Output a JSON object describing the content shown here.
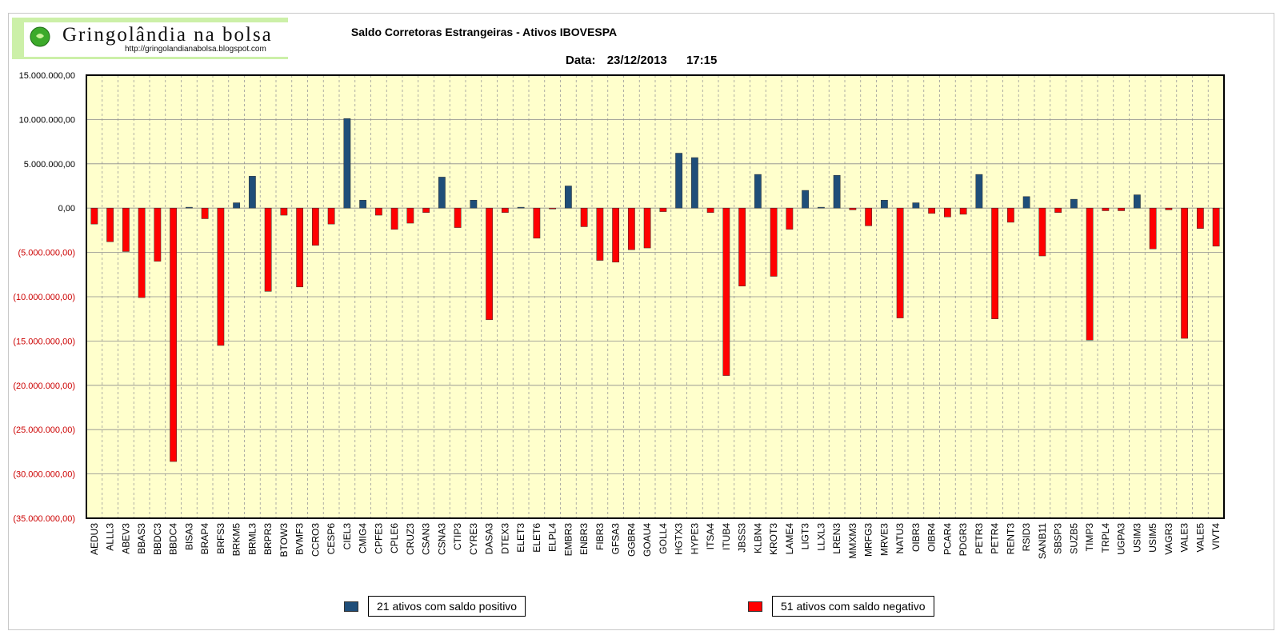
{
  "header": {
    "logo_text": "Gringolândia na bolsa",
    "logo_url": "http://gringolandianabolsa.blogspot.com",
    "title": "Saldo Corretoras Estrangeiras - Ativos IBOVESPA",
    "date_label": "Data:",
    "date_value": "23/12/2013",
    "time_value": "17:15"
  },
  "legend": {
    "positive": "21 ativos com saldo positivo",
    "negative": "51 ativos com saldo negativo"
  },
  "colors": {
    "plot_bg": "#ffffcc",
    "positive": "#1f4e79",
    "negative": "#ff0000",
    "logo_bg": "#ccf0a8"
  },
  "chart_data": {
    "type": "bar",
    "title": "Saldo Corretoras Estrangeiras - Ativos IBOVESPA",
    "xlabel": "",
    "ylabel": "",
    "ylim": [
      -35000000,
      15000000
    ],
    "yticks": [
      15000000,
      10000000,
      5000000,
      0,
      -5000000,
      -10000000,
      -15000000,
      -20000000,
      -25000000,
      -30000000,
      -35000000
    ],
    "ytick_labels": [
      "15.000.000,00",
      "10.000.000,00",
      "5.000.000,00",
      "0,00",
      "(5.000.000,00)",
      "(10.000.000,00)",
      "(15.000.000,00)",
      "(20.000.000,00)",
      "(25.000.000,00)",
      "(30.000.000,00)",
      "(35.000.000,00)"
    ],
    "grid": true,
    "categories": [
      "AEDU3",
      "ALLL3",
      "ABEV3",
      "BBAS3",
      "BBDC3",
      "BBDC4",
      "BISA3",
      "BRAP4",
      "BRFS3",
      "BRKM5",
      "BRML3",
      "BRPR3",
      "BTOW3",
      "BVMF3",
      "CCRO3",
      "CESP6",
      "CIEL3",
      "CMIG4",
      "CPFE3",
      "CPLE6",
      "CRUZ3",
      "CSAN3",
      "CSNA3",
      "CTIP3",
      "CYRE3",
      "DASA3",
      "DTEX3",
      "ELET3",
      "ELET6",
      "ELPL4",
      "EMBR3",
      "ENBR3",
      "FIBR3",
      "GFSA3",
      "GGBR4",
      "GOAU4",
      "GOLL4",
      "HGTX3",
      "HYPE3",
      "ITSA4",
      "ITUB4",
      "JBSS3",
      "KLBN4",
      "KROT3",
      "LAME4",
      "LIGT3",
      "LLXL3",
      "LREN3",
      "MMXM3",
      "MRFG3",
      "MRVE3",
      "NATU3",
      "OIBR3",
      "OIBR4",
      "PCAR4",
      "PDGR3",
      "PETR3",
      "PETR4",
      "RENT3",
      "RSID3",
      "SANB11",
      "SBSP3",
      "SUZB5",
      "TIMP3",
      "TRPL4",
      "UGPA3",
      "USIM3",
      "USIM5",
      "VAGR3",
      "VALE3",
      "VALE5",
      "VIVT4"
    ],
    "values": [
      -1800000,
      -3800000,
      -4900000,
      -10100000,
      -6000000,
      -28600000,
      100000,
      -1200000,
      -15500000,
      600000,
      3600000,
      -9400000,
      -800000,
      -8900000,
      -4200000,
      -1800000,
      10100000,
      900000,
      -800000,
      -2400000,
      -1700000,
      -500000,
      3500000,
      -2200000,
      900000,
      -12600000,
      -500000,
      100000,
      -3400000,
      -100000,
      2500000,
      -2100000,
      -5900000,
      -6100000,
      -4700000,
      -4500000,
      -400000,
      6200000,
      5700000,
      -500000,
      -18900000,
      -8800000,
      3800000,
      -7700000,
      -2400000,
      2000000,
      100000,
      3700000,
      -200000,
      -2000000,
      900000,
      -12400000,
      600000,
      -600000,
      -1000000,
      -700000,
      3800000,
      -12500000,
      -1600000,
      1300000,
      -5400000,
      -500000,
      1000000,
      -14900000,
      -300000,
      -300000,
      1500000,
      -4600000,
      -200000,
      -14700000,
      -2300000,
      -4300000
    ]
  }
}
